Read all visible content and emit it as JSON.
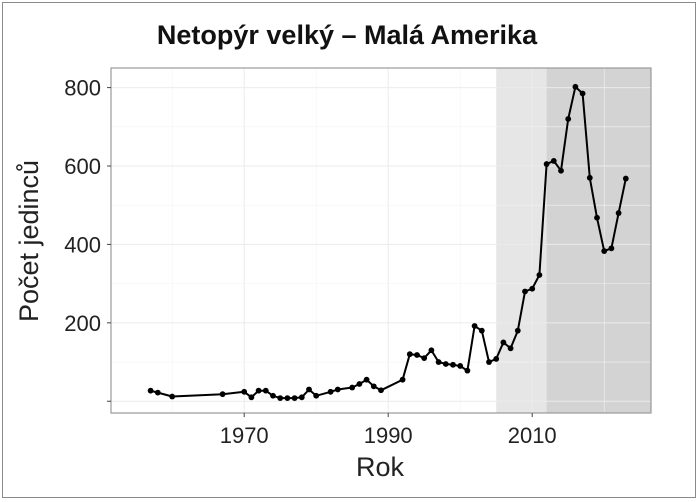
{
  "chart_data": {
    "type": "line",
    "title": "Netopýr velký – Malá Amerika",
    "xlabel": "Rok",
    "ylabel": "Počet jedinců",
    "xlim": [
      1951.5,
      2026.5
    ],
    "ylim": [
      -30,
      850
    ],
    "x_ticks": [
      1970,
      1990,
      2010
    ],
    "y_ticks": [
      200,
      400,
      600,
      800
    ],
    "grid": true,
    "shaded_regions": [
      {
        "from": 2005,
        "to": 2012,
        "color": "#e6e6e6"
      },
      {
        "from": 2012,
        "to": 2026.5,
        "color": "#d3d3d3"
      }
    ],
    "series": [
      {
        "color": "#000000",
        "x": [
          1957,
          1958,
          1960,
          1967,
          1970,
          1971,
          1972,
          1973,
          1974,
          1975,
          1976,
          1977,
          1978,
          1979,
          1980,
          1982,
          1983,
          1985,
          1986,
          1987,
          1988,
          1989,
          1992,
          1993,
          1994,
          1995,
          1996,
          1997,
          1998,
          1999,
          2000,
          2001,
          2002,
          2003,
          2004,
          2005,
          2006,
          2007,
          2008,
          2009,
          2010,
          2011,
          2012,
          2013,
          2014,
          2015,
          2016,
          2017,
          2018,
          2019,
          2020,
          2021,
          2022,
          2023
        ],
        "y": [
          27,
          22,
          12,
          18,
          24,
          10,
          27,
          27,
          14,
          8,
          8,
          8,
          10,
          30,
          14,
          24,
          30,
          35,
          44,
          55,
          38,
          28,
          55,
          120,
          118,
          110,
          130,
          100,
          95,
          93,
          90,
          78,
          192,
          180,
          100,
          108,
          150,
          135,
          180,
          280,
          287,
          322,
          605,
          613,
          588,
          720,
          802,
          785,
          570,
          468,
          383,
          390,
          480,
          568
        ]
      }
    ]
  }
}
